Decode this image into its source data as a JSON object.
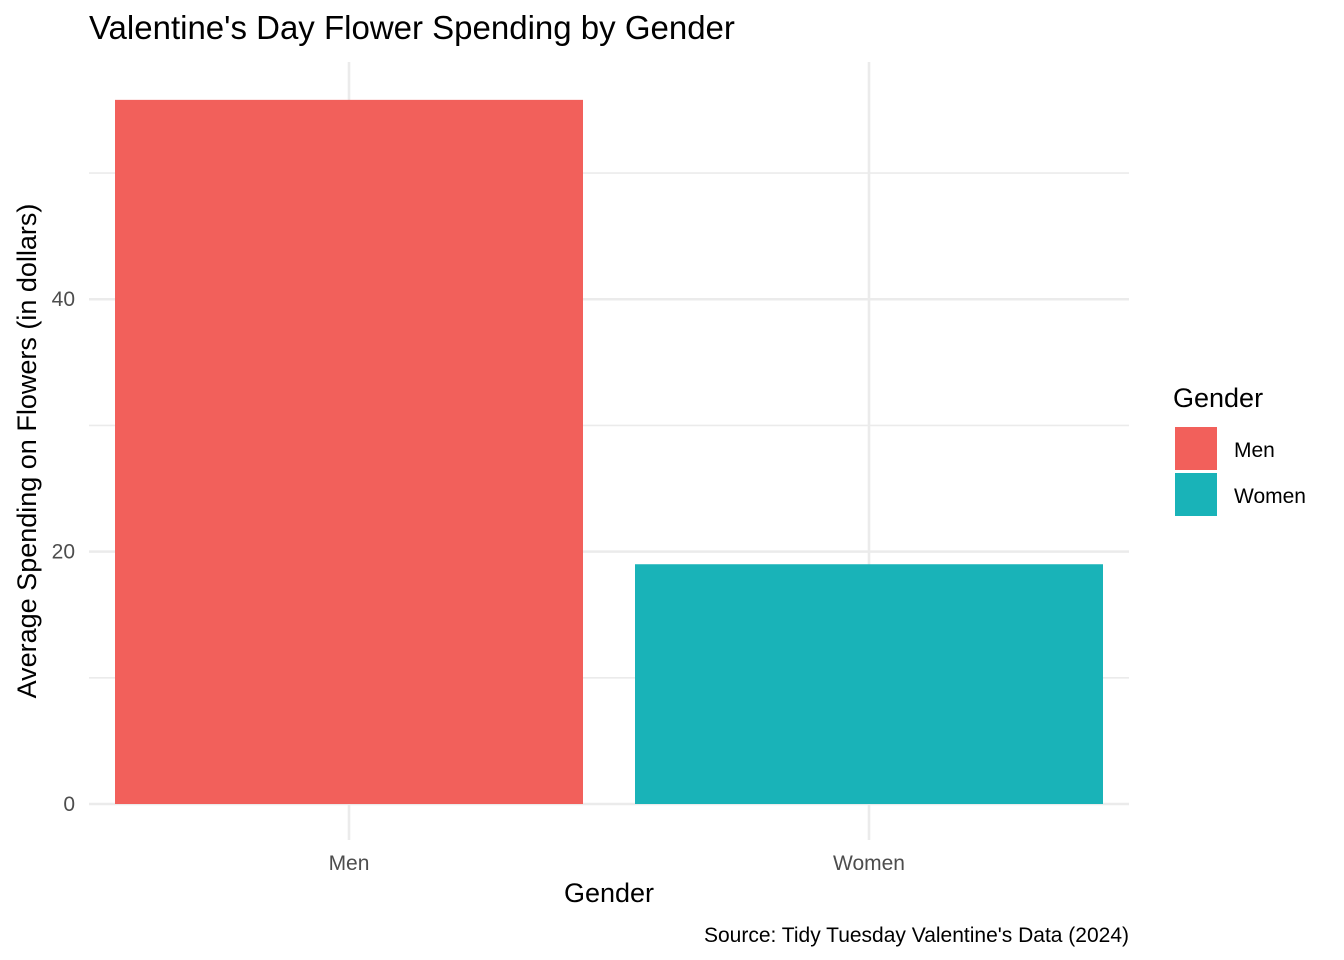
{
  "chart_data": {
    "type": "bar",
    "title": "Valentine's Day Flower Spending by Gender",
    "xlabel": "Gender",
    "ylabel": "Average Spending on Flowers (in dollars)",
    "categories": [
      "Men",
      "Women"
    ],
    "values": [
      55.8,
      19.0
    ],
    "colors": [
      "#F2605B",
      "#19B3B8"
    ],
    "ylim": [
      0,
      58.8
    ],
    "yticks": [
      0,
      20,
      40
    ],
    "ytick_labels": [
      "0",
      "20",
      "40"
    ],
    "y_minor_ticks": [
      10,
      30,
      50
    ],
    "grid": true,
    "legend": {
      "title": "Gender",
      "position": "right",
      "items": [
        {
          "label": "Men",
          "color": "#F2605B"
        },
        {
          "label": "Women",
          "color": "#19B3B8"
        }
      ]
    },
    "caption": "Source: Tidy Tuesday Valentine's Data (2024)"
  }
}
